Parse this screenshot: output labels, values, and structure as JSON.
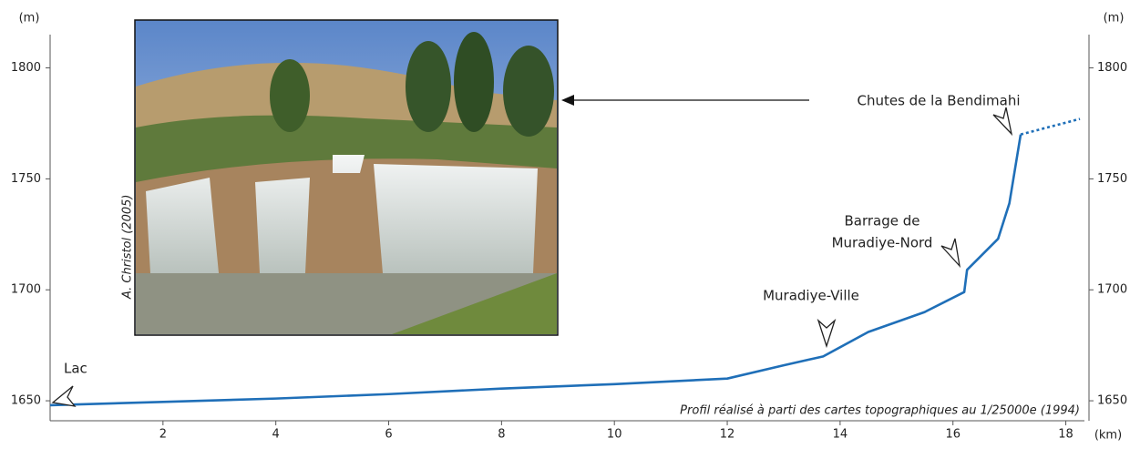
{
  "chart_data": {
    "type": "line",
    "x": [
      0,
      2,
      4,
      6,
      8,
      10,
      12,
      13,
      13.7,
      14.5,
      15.5,
      16.2,
      16.25,
      16.8,
      17.0,
      17.2,
      18.25
    ],
    "series": [
      {
        "color": "#1f6fb8",
        "style": "solid",
        "values": [
          1648,
          1649.5,
          1651,
          1653,
          1655.5,
          1657.5,
          1660,
          1666,
          1670,
          1681,
          1690,
          1699,
          1709,
          1723,
          1739,
          1770,
          null
        ]
      },
      {
        "color": "#1f6fb8",
        "style": "dotted",
        "values": [
          null,
          null,
          null,
          null,
          null,
          null,
          null,
          null,
          null,
          null,
          null,
          null,
          null,
          null,
          null,
          1770,
          1777
        ]
      }
    ],
    "xlim": [
      0,
      18.33
    ],
    "xticks": [
      2,
      4,
      6,
      8,
      10,
      12,
      14,
      16,
      18
    ],
    "xlabel": "(km)",
    "ylim": [
      1641,
      1815
    ],
    "yticks": [
      1650,
      1700,
      1750,
      1800
    ],
    "ylabel": "(m)",
    "y2lim": [
      1641,
      1815
    ],
    "y2ticks": [
      1650,
      1700,
      1750,
      1800
    ],
    "y2label": "(m)",
    "annotations": [
      {
        "lines": [
          "Lac"
        ]
      },
      {
        "lines": [
          "Muradiye-Ville"
        ]
      },
      {
        "lines": [
          "Barrage de",
          "Muradiye-Nord"
        ]
      },
      {
        "lines": [
          "Chutes de la Bendimahi"
        ]
      }
    ],
    "note": "Profil réalisé à parti des cartes topographiques au 1/25000e (1994)",
    "photo_credit": "A. Christol (2005)"
  }
}
